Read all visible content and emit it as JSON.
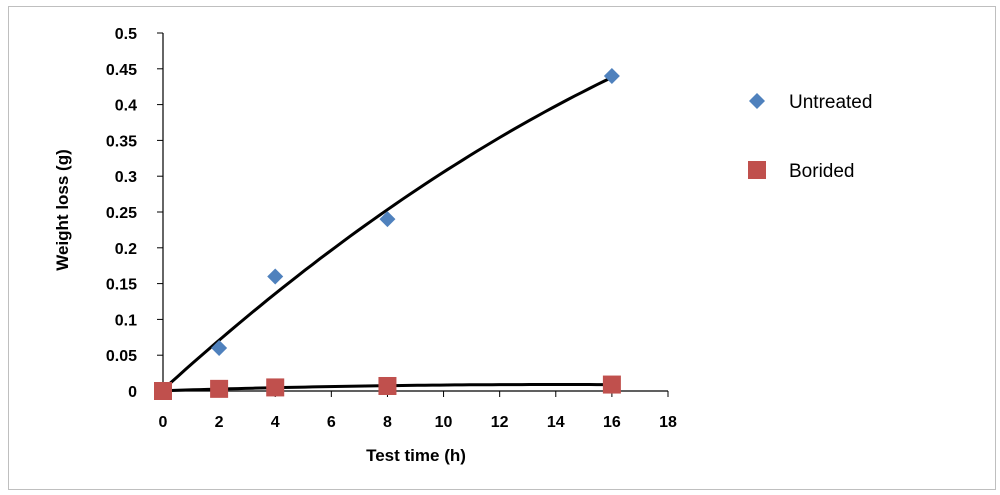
{
  "chart_data": {
    "type": "scatter",
    "xlabel": "Test time (h)",
    "ylabel": "Weight loss  (g)",
    "xlim": [
      0,
      18
    ],
    "ylim": [
      0,
      0.5
    ],
    "x_ticks": [
      0,
      2,
      4,
      6,
      8,
      10,
      12,
      14,
      16,
      18
    ],
    "y_ticks": [
      0,
      0.05,
      0.1,
      0.15,
      0.2,
      0.25,
      0.3,
      0.35,
      0.4,
      0.45,
      0.5
    ],
    "grid": false,
    "legend_position": "right",
    "trendlines": true,
    "series": [
      {
        "name": "Untreated",
        "marker": "diamond",
        "color": "#4f81bd",
        "x": [
          0,
          2,
          4,
          8,
          16
        ],
        "y": [
          0,
          0.06,
          0.16,
          0.24,
          0.44
        ]
      },
      {
        "name": "Borided",
        "marker": "square",
        "color": "#c0504d",
        "x": [
          0,
          2,
          4,
          8,
          16
        ],
        "y": [
          0,
          0.003,
          0.005,
          0.007,
          0.009
        ]
      }
    ]
  }
}
